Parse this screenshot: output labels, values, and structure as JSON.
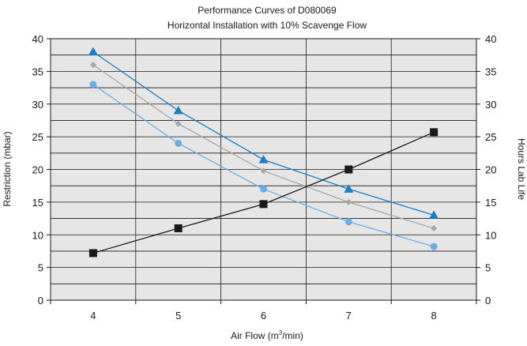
{
  "chart_data": {
    "type": "line",
    "title": "Performance Curves of D080069",
    "subtitle": "Horizontal Installation with 10% Scavenge Flow",
    "xlabel": {
      "pre": "Air Flow (m",
      "sup": "3",
      "post": "/min)"
    },
    "ylabel": "Restriction (mbar)",
    "y2label": "Hours Lab Life",
    "x": [
      4,
      5,
      6,
      7,
      8
    ],
    "xlim": [
      3.5,
      8.5
    ],
    "ylim": [
      0,
      40
    ],
    "y2lim": [
      0,
      40
    ],
    "x_ticks": [
      "4",
      "5",
      "6",
      "7",
      "8"
    ],
    "y_ticks": [
      "0",
      "5",
      "10",
      "15",
      "20",
      "25",
      "30",
      "35",
      "40"
    ],
    "y2_ticks": [
      "0",
      "5",
      "10",
      "15",
      "20",
      "25",
      "30",
      "35",
      "40"
    ],
    "grid": true,
    "series": [
      {
        "axis": "left",
        "marker": "triangle",
        "color": "#1a7fc1",
        "values": [
          38,
          29,
          21.5,
          17,
          13
        ]
      },
      {
        "axis": "left",
        "marker": "diamond",
        "color": "#a6a6a6",
        "values": [
          36,
          27,
          19.8,
          15,
          11
        ]
      },
      {
        "axis": "left",
        "marker": "circle",
        "color": "#6aaee6",
        "values": [
          33,
          24,
          17,
          12,
          8.2
        ]
      },
      {
        "axis": "right",
        "marker": "square",
        "color": "#1a1a1a",
        "values": [
          7.2,
          11,
          14.7,
          20,
          25.7
        ]
      }
    ]
  }
}
